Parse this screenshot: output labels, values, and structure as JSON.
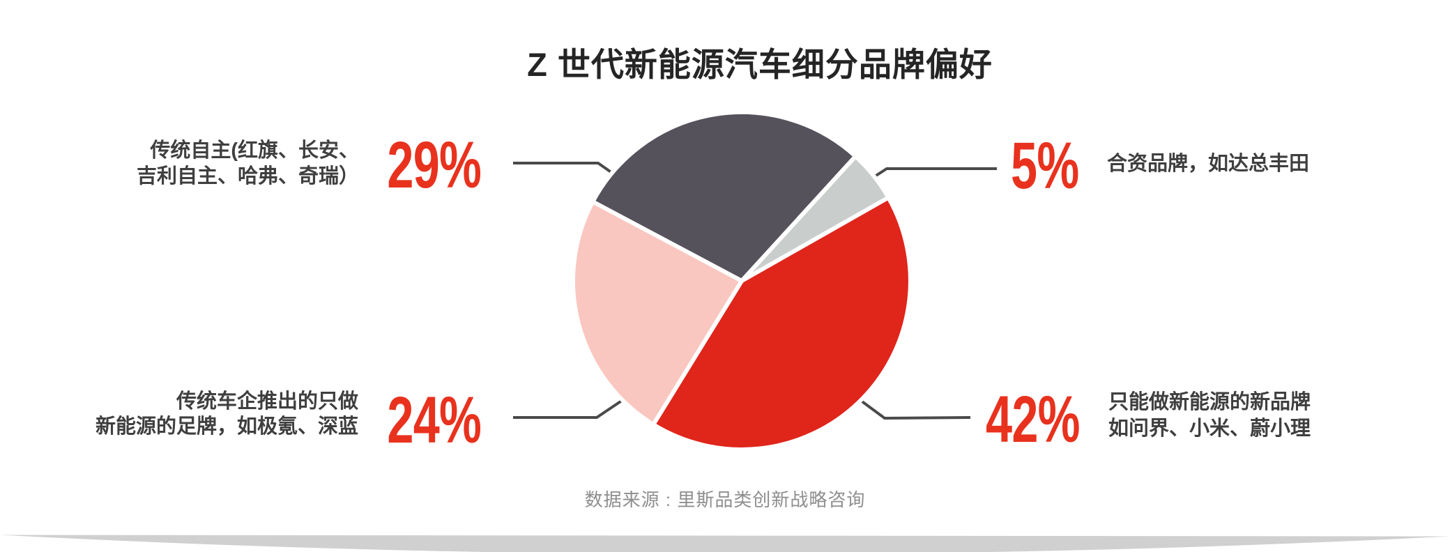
{
  "title": "Z 世代新能源汽车细分品牌偏好",
  "accent_color": "#E8321E",
  "connector_color": "#4A4A4A",
  "chart_data": {
    "type": "pie",
    "title": "Z 世代新能源汽车细分品牌偏好",
    "direction": "clockwise",
    "start_angle_deg": 298,
    "legend_position": "callout-labels",
    "source": "数据来源 : 里斯品类创新战略咨询",
    "slices": [
      {
        "name": "传统自主(红旗、长安、吉利自主、哈弗、奇瑞）",
        "value": 29,
        "pct_label": "29%",
        "color": "#56525C",
        "label_lines": [
          "传统自主(红旗、长安、",
          "吉利自主、哈弗、奇瑞）"
        ]
      },
      {
        "name": "合资品牌，如达总丰田",
        "value": 5,
        "pct_label": "5%",
        "color": "#C9CDCB",
        "label_lines": [
          "合资品牌，如达总丰田"
        ]
      },
      {
        "name": "只能做新能源的新品牌，如问界、小米、蔚小理",
        "value": 42,
        "pct_label": "42%",
        "color": "#E0251B",
        "label_lines": [
          "只能做新能源的新品牌",
          "如问界、小米、蔚小理"
        ]
      },
      {
        "name": "传统车企推出的只做新能源的足牌，如极氪、深蓝",
        "value": 24,
        "pct_label": "24%",
        "color": "#F9C7C0",
        "label_lines": [
          "传统车企推出的只做",
          "新能源的足牌，如极氪、深蓝"
        ]
      }
    ]
  }
}
